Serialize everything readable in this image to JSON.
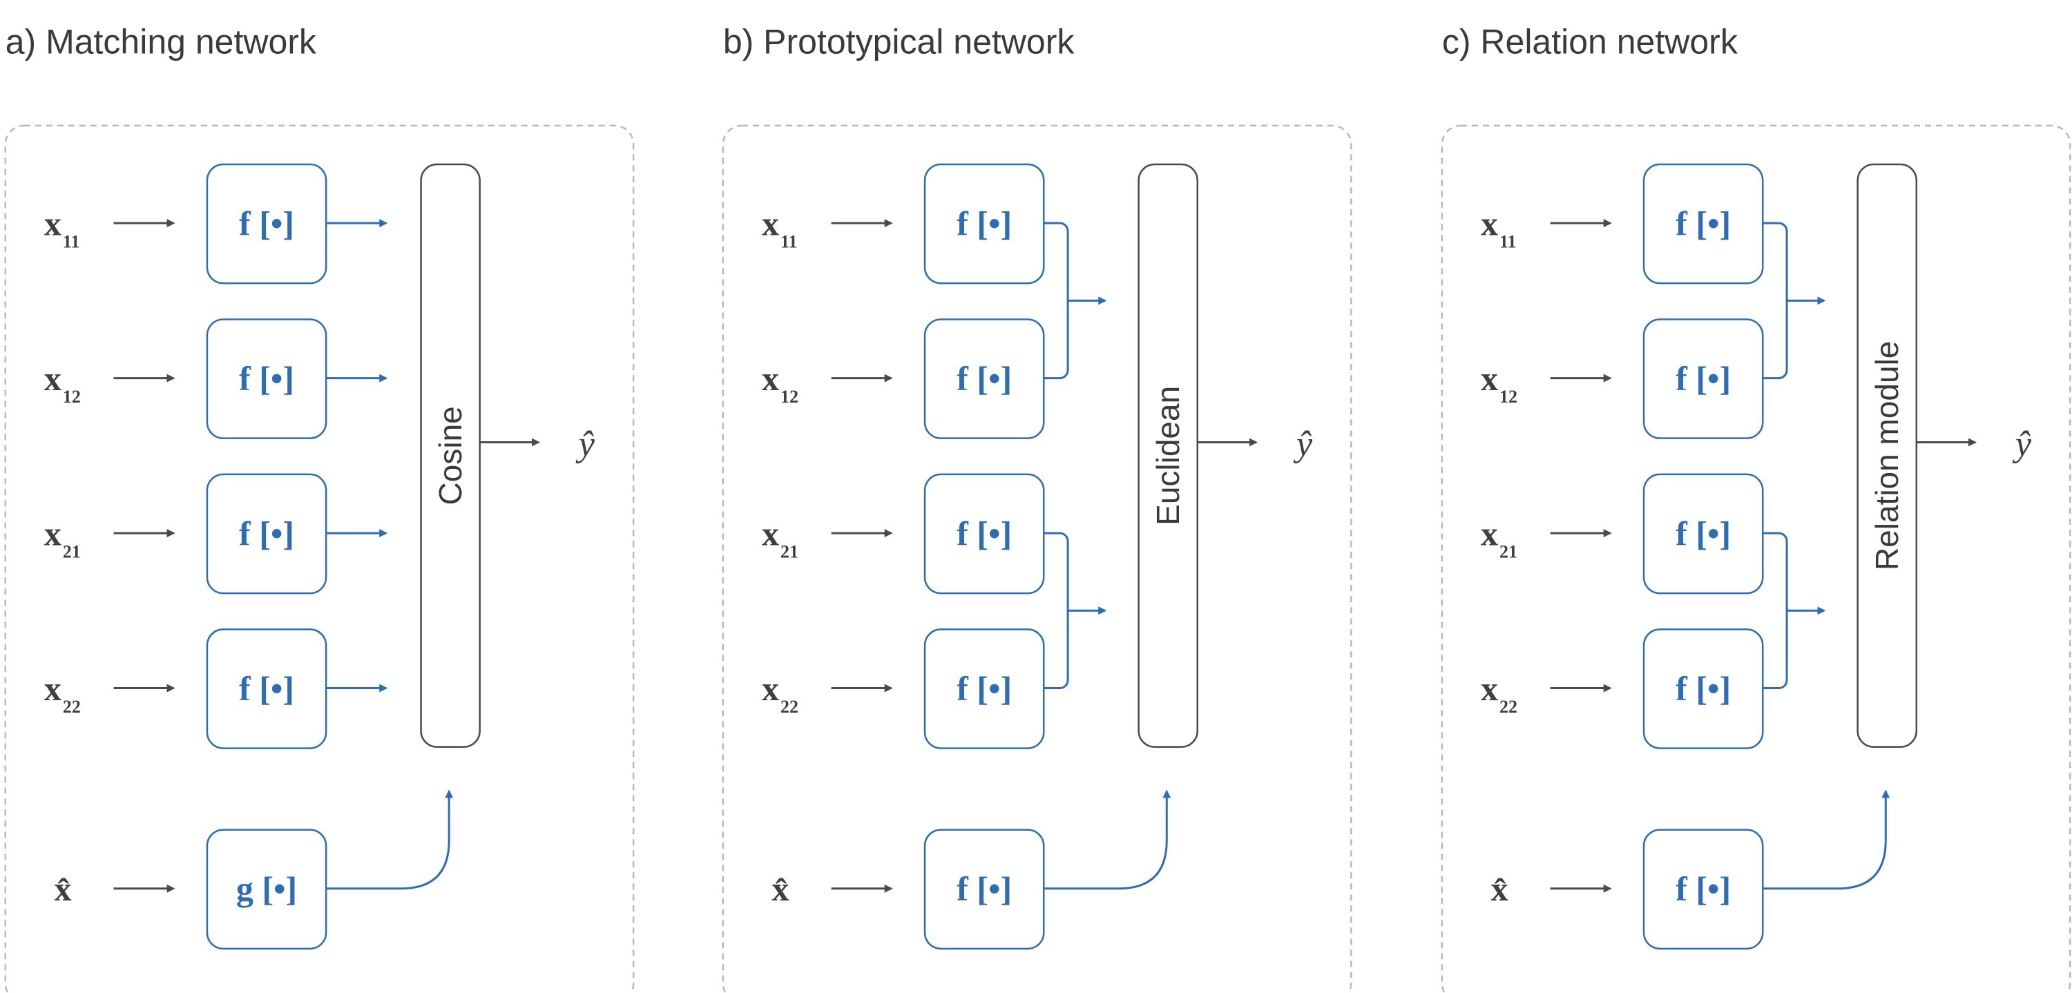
{
  "panels": [
    {
      "title": "a) Matching network",
      "inputs": [
        {
          "base": "x",
          "sub": "11"
        },
        {
          "base": "x",
          "sub": "12"
        },
        {
          "base": "x",
          "sub": "21"
        },
        {
          "base": "x",
          "sub": "22"
        }
      ],
      "encoder_labels": [
        "f [•]",
        "f [•]",
        "f [•]",
        "f [•]"
      ],
      "query_input": "x̂",
      "query_encoder": "g [•]",
      "module": "Cosine",
      "output": "ŷ",
      "pooling": "none"
    },
    {
      "title": "b) Prototypical network",
      "inputs": [
        {
          "base": "x",
          "sub": "11"
        },
        {
          "base": "x",
          "sub": "12"
        },
        {
          "base": "x",
          "sub": "21"
        },
        {
          "base": "x",
          "sub": "22"
        }
      ],
      "encoder_labels": [
        "f [•]",
        "f [•]",
        "f [•]",
        "f [•]"
      ],
      "query_input": "x̂",
      "query_encoder": "f [•]",
      "module": "Euclidean",
      "output": "ŷ",
      "pooling": "pairs"
    },
    {
      "title": "c) Relation network",
      "inputs": [
        {
          "base": "x",
          "sub": "11"
        },
        {
          "base": "x",
          "sub": "12"
        },
        {
          "base": "x",
          "sub": "21"
        },
        {
          "base": "x",
          "sub": "22"
        }
      ],
      "encoder_labels": [
        "f [•]",
        "f [•]",
        "f [•]",
        "f [•]"
      ],
      "query_input": "x̂",
      "query_encoder": "f [•]",
      "module": "Relation module",
      "output": "ŷ",
      "pooling": "pairs"
    }
  ],
  "colors": {
    "encoder": "#2e6db3",
    "text": "#3a3a3a",
    "dashed_border": "#b9b9b9",
    "background": "#ffffff"
  }
}
